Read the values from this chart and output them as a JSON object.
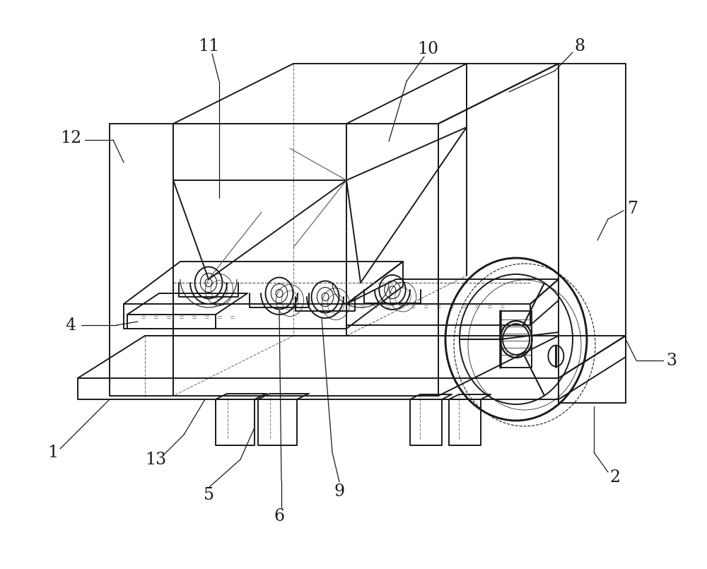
{
  "bg_color": "#ffffff",
  "line_color": "#1a1a1a",
  "lw": 1.4,
  "tlw": 0.8,
  "figsize": [
    10.0,
    8.05
  ],
  "dpi": 100,
  "label_fs": 17
}
